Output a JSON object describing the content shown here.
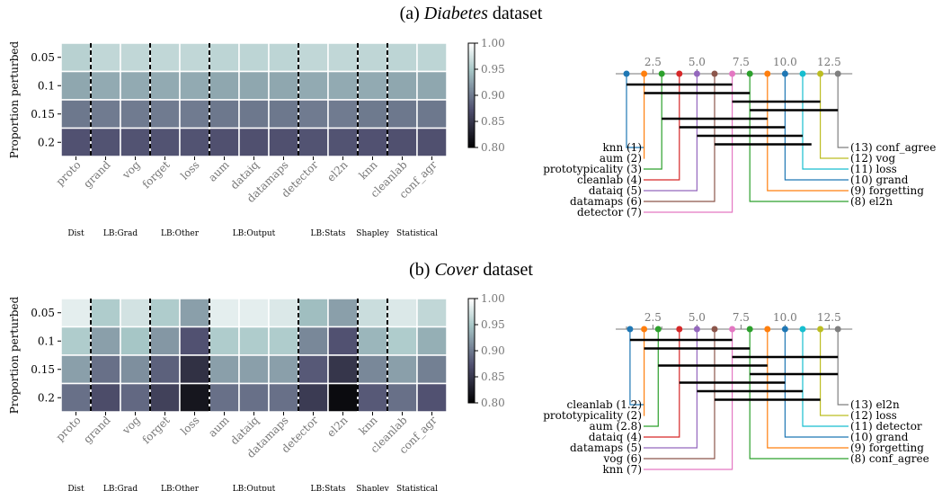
{
  "panels": [
    {
      "prefix": "(a) ",
      "dataset": "Diabetes",
      "suffix": " dataset"
    },
    {
      "prefix": "(b) ",
      "dataset": "Cover",
      "suffix": " dataset"
    }
  ],
  "chart_data": [
    {
      "type": "heatmap",
      "title": "(a) Diabetes dataset",
      "ylabel": "Proportion perturbed",
      "rows": [
        "0.05",
        "0.1",
        "0.15",
        "0.2"
      ],
      "columns": [
        "proto",
        "grand",
        "vog",
        "forget",
        "loss",
        "aum",
        "dataiq",
        "datamaps",
        "detector",
        "el2n",
        "knn",
        "cleanlab",
        "conf_agr"
      ],
      "groups": [
        {
          "label": "Dist",
          "columns": [
            "proto"
          ]
        },
        {
          "label": "LB:Grad",
          "columns": [
            "grand",
            "vog"
          ]
        },
        {
          "label": "LB:Other",
          "columns": [
            "forget",
            "loss"
          ]
        },
        {
          "label": "LB:Output",
          "columns": [
            "aum",
            "dataiq",
            "datamaps"
          ]
        },
        {
          "label": "LB:Stats",
          "columns": [
            "detector",
            "el2n"
          ]
        },
        {
          "label": "Shapley",
          "columns": [
            "knn"
          ]
        },
        {
          "label": "Statistical",
          "columns": [
            "cleanlab",
            "conf_agr"
          ]
        }
      ],
      "values": [
        [
          0.96,
          0.965,
          0.965,
          0.965,
          0.965,
          0.963,
          0.963,
          0.963,
          0.965,
          0.965,
          0.964,
          0.963,
          0.963
        ],
        [
          0.93,
          0.932,
          0.932,
          0.932,
          0.932,
          0.93,
          0.93,
          0.93,
          0.932,
          0.932,
          0.932,
          0.93,
          0.93
        ],
        [
          0.9,
          0.902,
          0.902,
          0.902,
          0.902,
          0.9,
          0.9,
          0.9,
          0.902,
          0.902,
          0.901,
          0.9,
          0.9
        ],
        [
          0.875,
          0.876,
          0.876,
          0.876,
          0.876,
          0.874,
          0.874,
          0.874,
          0.876,
          0.876,
          0.875,
          0.874,
          0.874
        ]
      ],
      "colorbar": {
        "min": 0.8,
        "max": 1.0,
        "ticks": [
          "0.80",
          "0.85",
          "0.90",
          "0.95",
          "1.00"
        ],
        "colormap": "bone"
      },
      "group_separators": "dashed black vertical lines"
    },
    {
      "type": "critical_difference",
      "ticks": [
        "2.5",
        "5.0",
        "7.5",
        "10.0",
        "12.5"
      ],
      "axis_range": [
        1,
        13
      ],
      "left": [
        {
          "label": "knn (1)",
          "rank": 1,
          "color": "#1f77b4"
        },
        {
          "label": "aum (2)",
          "rank": 2,
          "color": "#ff7f0e"
        },
        {
          "label": "prototypicality (3)",
          "rank": 3,
          "color": "#2ca02c"
        },
        {
          "label": "cleanlab (4)",
          "rank": 4,
          "color": "#d62728"
        },
        {
          "label": "dataiq (5)",
          "rank": 5,
          "color": "#9467bd"
        },
        {
          "label": "datamaps (6)",
          "rank": 6,
          "color": "#8c564b"
        },
        {
          "label": "detector (7)",
          "rank": 7,
          "color": "#e377c2"
        }
      ],
      "right": [
        {
          "label": "(13) conf_agree",
          "rank": 13,
          "color": "#7f7f7f"
        },
        {
          "label": "(12) vog",
          "rank": 12,
          "color": "#bcbd22"
        },
        {
          "label": "(11) loss",
          "rank": 11,
          "color": "#17becf"
        },
        {
          "label": "(10) grand",
          "rank": 10,
          "color": "#1f77b4"
        },
        {
          "label": "(9) forgetting",
          "rank": 9,
          "color": "#ff7f0e"
        },
        {
          "label": "(8) el2n",
          "rank": 8,
          "color": "#2ca02c"
        }
      ],
      "cliques": [
        [
          1,
          7
        ],
        [
          2,
          8
        ],
        [
          7,
          12
        ],
        [
          8,
          13
        ],
        [
          3,
          9
        ],
        [
          4,
          10
        ],
        [
          5,
          11
        ],
        [
          6,
          11.5
        ]
      ]
    },
    {
      "type": "heatmap",
      "title": "(b) Cover dataset",
      "ylabel": "Proportion perturbed",
      "rows": [
        "0.05",
        "0.1",
        "0.15",
        "0.2"
      ],
      "columns": [
        "proto",
        "grand",
        "vog",
        "forget",
        "loss",
        "aum",
        "dataiq",
        "datamaps",
        "detector",
        "el2n",
        "knn",
        "cleanlab",
        "conf_agr"
      ],
      "groups": [
        {
          "label": "Dist",
          "columns": [
            "proto"
          ]
        },
        {
          "label": "LB:Grad",
          "columns": [
            "grand",
            "vog"
          ]
        },
        {
          "label": "LB:Other",
          "columns": [
            "forget",
            "loss"
          ]
        },
        {
          "label": "LB:Output",
          "columns": [
            "aum",
            "dataiq",
            "datamaps"
          ]
        },
        {
          "label": "LB:Stats",
          "columns": [
            "detector",
            "el2n"
          ]
        },
        {
          "label": "Shapley",
          "columns": [
            "knn"
          ]
        },
        {
          "label": "Statistical",
          "columns": [
            "cleanlab",
            "conf_agr"
          ]
        }
      ],
      "values": [
        [
          0.985,
          0.955,
          0.975,
          0.955,
          0.925,
          0.985,
          0.985,
          0.98,
          0.945,
          0.925,
          0.97,
          0.98,
          0.965
        ],
        [
          0.955,
          0.925,
          0.95,
          0.92,
          0.875,
          0.955,
          0.955,
          0.955,
          0.91,
          0.875,
          0.94,
          0.955,
          0.935
        ],
        [
          0.925,
          0.895,
          0.915,
          0.885,
          0.845,
          0.925,
          0.925,
          0.925,
          0.88,
          0.85,
          0.91,
          0.925,
          0.905
        ],
        [
          0.895,
          0.87,
          0.89,
          0.86,
          0.82,
          0.895,
          0.895,
          0.895,
          0.855,
          0.81,
          0.88,
          0.895,
          0.875
        ]
      ],
      "colorbar": {
        "min": 0.8,
        "max": 1.0,
        "ticks": [
          "0.80",
          "0.85",
          "0.90",
          "0.95",
          "1.00"
        ],
        "colormap": "bone"
      },
      "group_separators": "dashed black vertical lines"
    },
    {
      "type": "critical_difference",
      "ticks": [
        "2.5",
        "5.0",
        "7.5",
        "10.0",
        "12.5"
      ],
      "axis_range": [
        1,
        13
      ],
      "left": [
        {
          "label": "cleanlab (1.2)",
          "rank": 1.2,
          "color": "#1f77b4"
        },
        {
          "label": "prototypicality (2)",
          "rank": 2,
          "color": "#ff7f0e"
        },
        {
          "label": "aum (2.8)",
          "rank": 2.8,
          "color": "#2ca02c"
        },
        {
          "label": "dataiq (4)",
          "rank": 4,
          "color": "#d62728"
        },
        {
          "label": "datamaps (5)",
          "rank": 5,
          "color": "#9467bd"
        },
        {
          "label": "vog (6)",
          "rank": 6,
          "color": "#8c564b"
        },
        {
          "label": "knn (7)",
          "rank": 7,
          "color": "#e377c2"
        }
      ],
      "right": [
        {
          "label": "(13) el2n",
          "rank": 13,
          "color": "#7f7f7f"
        },
        {
          "label": "(12) loss",
          "rank": 12,
          "color": "#bcbd22"
        },
        {
          "label": "(11) detector",
          "rank": 11,
          "color": "#17becf"
        },
        {
          "label": "(10) grand",
          "rank": 10,
          "color": "#1f77b4"
        },
        {
          "label": "(9) forgetting",
          "rank": 9,
          "color": "#ff7f0e"
        },
        {
          "label": "(8) conf_agree",
          "rank": 8,
          "color": "#2ca02c"
        }
      ],
      "cliques": [
        [
          1.2,
          7
        ],
        [
          2,
          8
        ],
        [
          7,
          13
        ],
        [
          2.8,
          9
        ],
        [
          8,
          13
        ],
        [
          4,
          10
        ],
        [
          5,
          11
        ],
        [
          6,
          12
        ]
      ]
    }
  ]
}
